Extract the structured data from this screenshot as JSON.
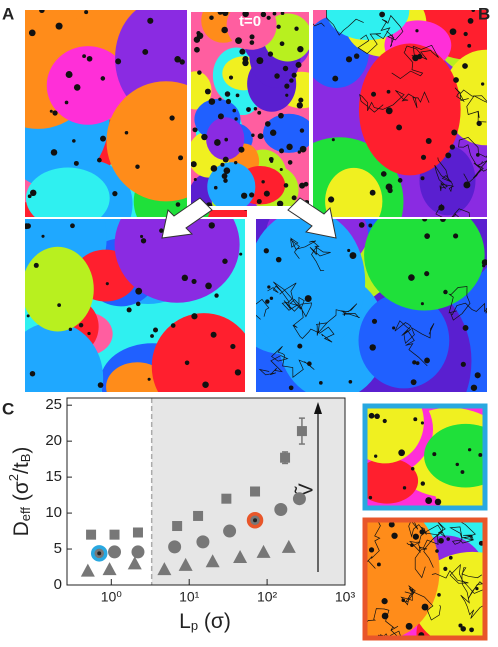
{
  "figure": {
    "panel_labels": [
      "A",
      "B",
      "C"
    ],
    "inset_label": "t=0"
  },
  "chart_data": {
    "type": "scatter",
    "x_label": [
      "L",
      "p",
      " (σ)"
    ],
    "y_label": [
      "D",
      "eff",
      " (σ",
      "2",
      "/t",
      "B",
      ")"
    ],
    "annotation": "Ṽ",
    "xlog": true,
    "xlim": [
      0.27,
      1000
    ],
    "ylim": [
      0,
      26
    ],
    "xticks": [
      {
        "value": 1,
        "label": "10⁰"
      },
      {
        "value": 10,
        "label": "10¹"
      },
      {
        "value": 100,
        "label": "10²"
      },
      {
        "value": 1000,
        "label": "10³"
      }
    ],
    "yticks": [
      0,
      5,
      10,
      15,
      20,
      25
    ],
    "threshold": 3.3,
    "series": [
      {
        "marker": "square",
        "color": "#777777",
        "x": [
          0.55,
          1.1,
          2.2,
          7,
          13,
          30,
          70,
          170,
          280
        ],
        "values": [
          7,
          7,
          7.3,
          8.2,
          9.6,
          12,
          13,
          17.7,
          21.4
        ],
        "errors": [
          null,
          null,
          null,
          null,
          null,
          null,
          null,
          0.8,
          1.8
        ]
      },
      {
        "marker": "circle",
        "color": "#777777",
        "x": [
          0.7,
          1.1,
          2.2,
          6.5,
          15,
          33,
          70,
          150,
          260
        ],
        "values": [
          4.4,
          4.6,
          4.6,
          5.3,
          6,
          7.5,
          9,
          10.5,
          12
        ]
      },
      {
        "marker": "triangle",
        "color": "#777777",
        "x": [
          0.5,
          0.95,
          2,
          4.8,
          9,
          20,
          45,
          90,
          190
        ],
        "values": [
          2,
          2.2,
          3,
          2.2,
          2.8,
          3.3,
          3.9,
          4.6,
          5.3
        ]
      }
    ],
    "highlights": [
      {
        "series": 1,
        "index": 0,
        "color": "#29a8e0"
      },
      {
        "series": 1,
        "index": 6,
        "color": "#e8562a"
      }
    ]
  }
}
